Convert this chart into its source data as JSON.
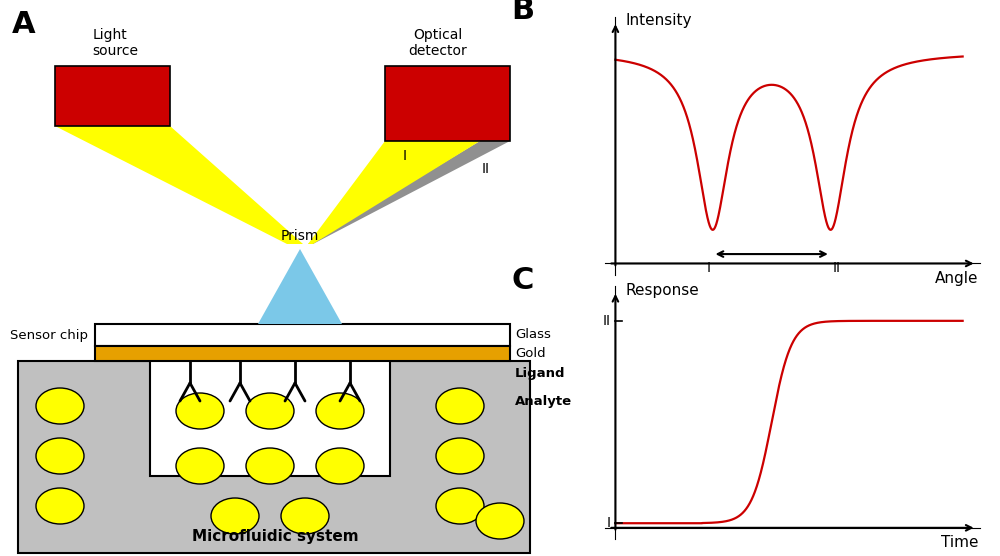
{
  "bg_color": "#ffffff",
  "panel_A_label": "A",
  "panel_B_label": "B",
  "panel_C_label": "C",
  "light_source_label": "Light\nsource",
  "optical_detector_label": "Optical\ndetector",
  "prism_label": "Prism",
  "sensor_chip_label": "Sensor chip",
  "glass_label": "Glass",
  "gold_label": "Gold",
  "ligand_label": "Ligand",
  "analyte_label": "Analyte",
  "microfluidic_label": "Microfluidic system",
  "intensity_label": "Intensity",
  "angle_label": "Angle",
  "response_label": "Response",
  "time_label": "Time",
  "roman_I": "I",
  "roman_II": "II",
  "red_color": "#cc0000",
  "yellow_color": "#ffff00",
  "gold_color": "#e6a000",
  "gray_color": "#c0c0c0",
  "light_blue_color": "#7bc8e8",
  "mid_gray": "#909090",
  "white_color": "#ffffff",
  "red_device_color": "#cc0000",
  "line_color": "#000000"
}
